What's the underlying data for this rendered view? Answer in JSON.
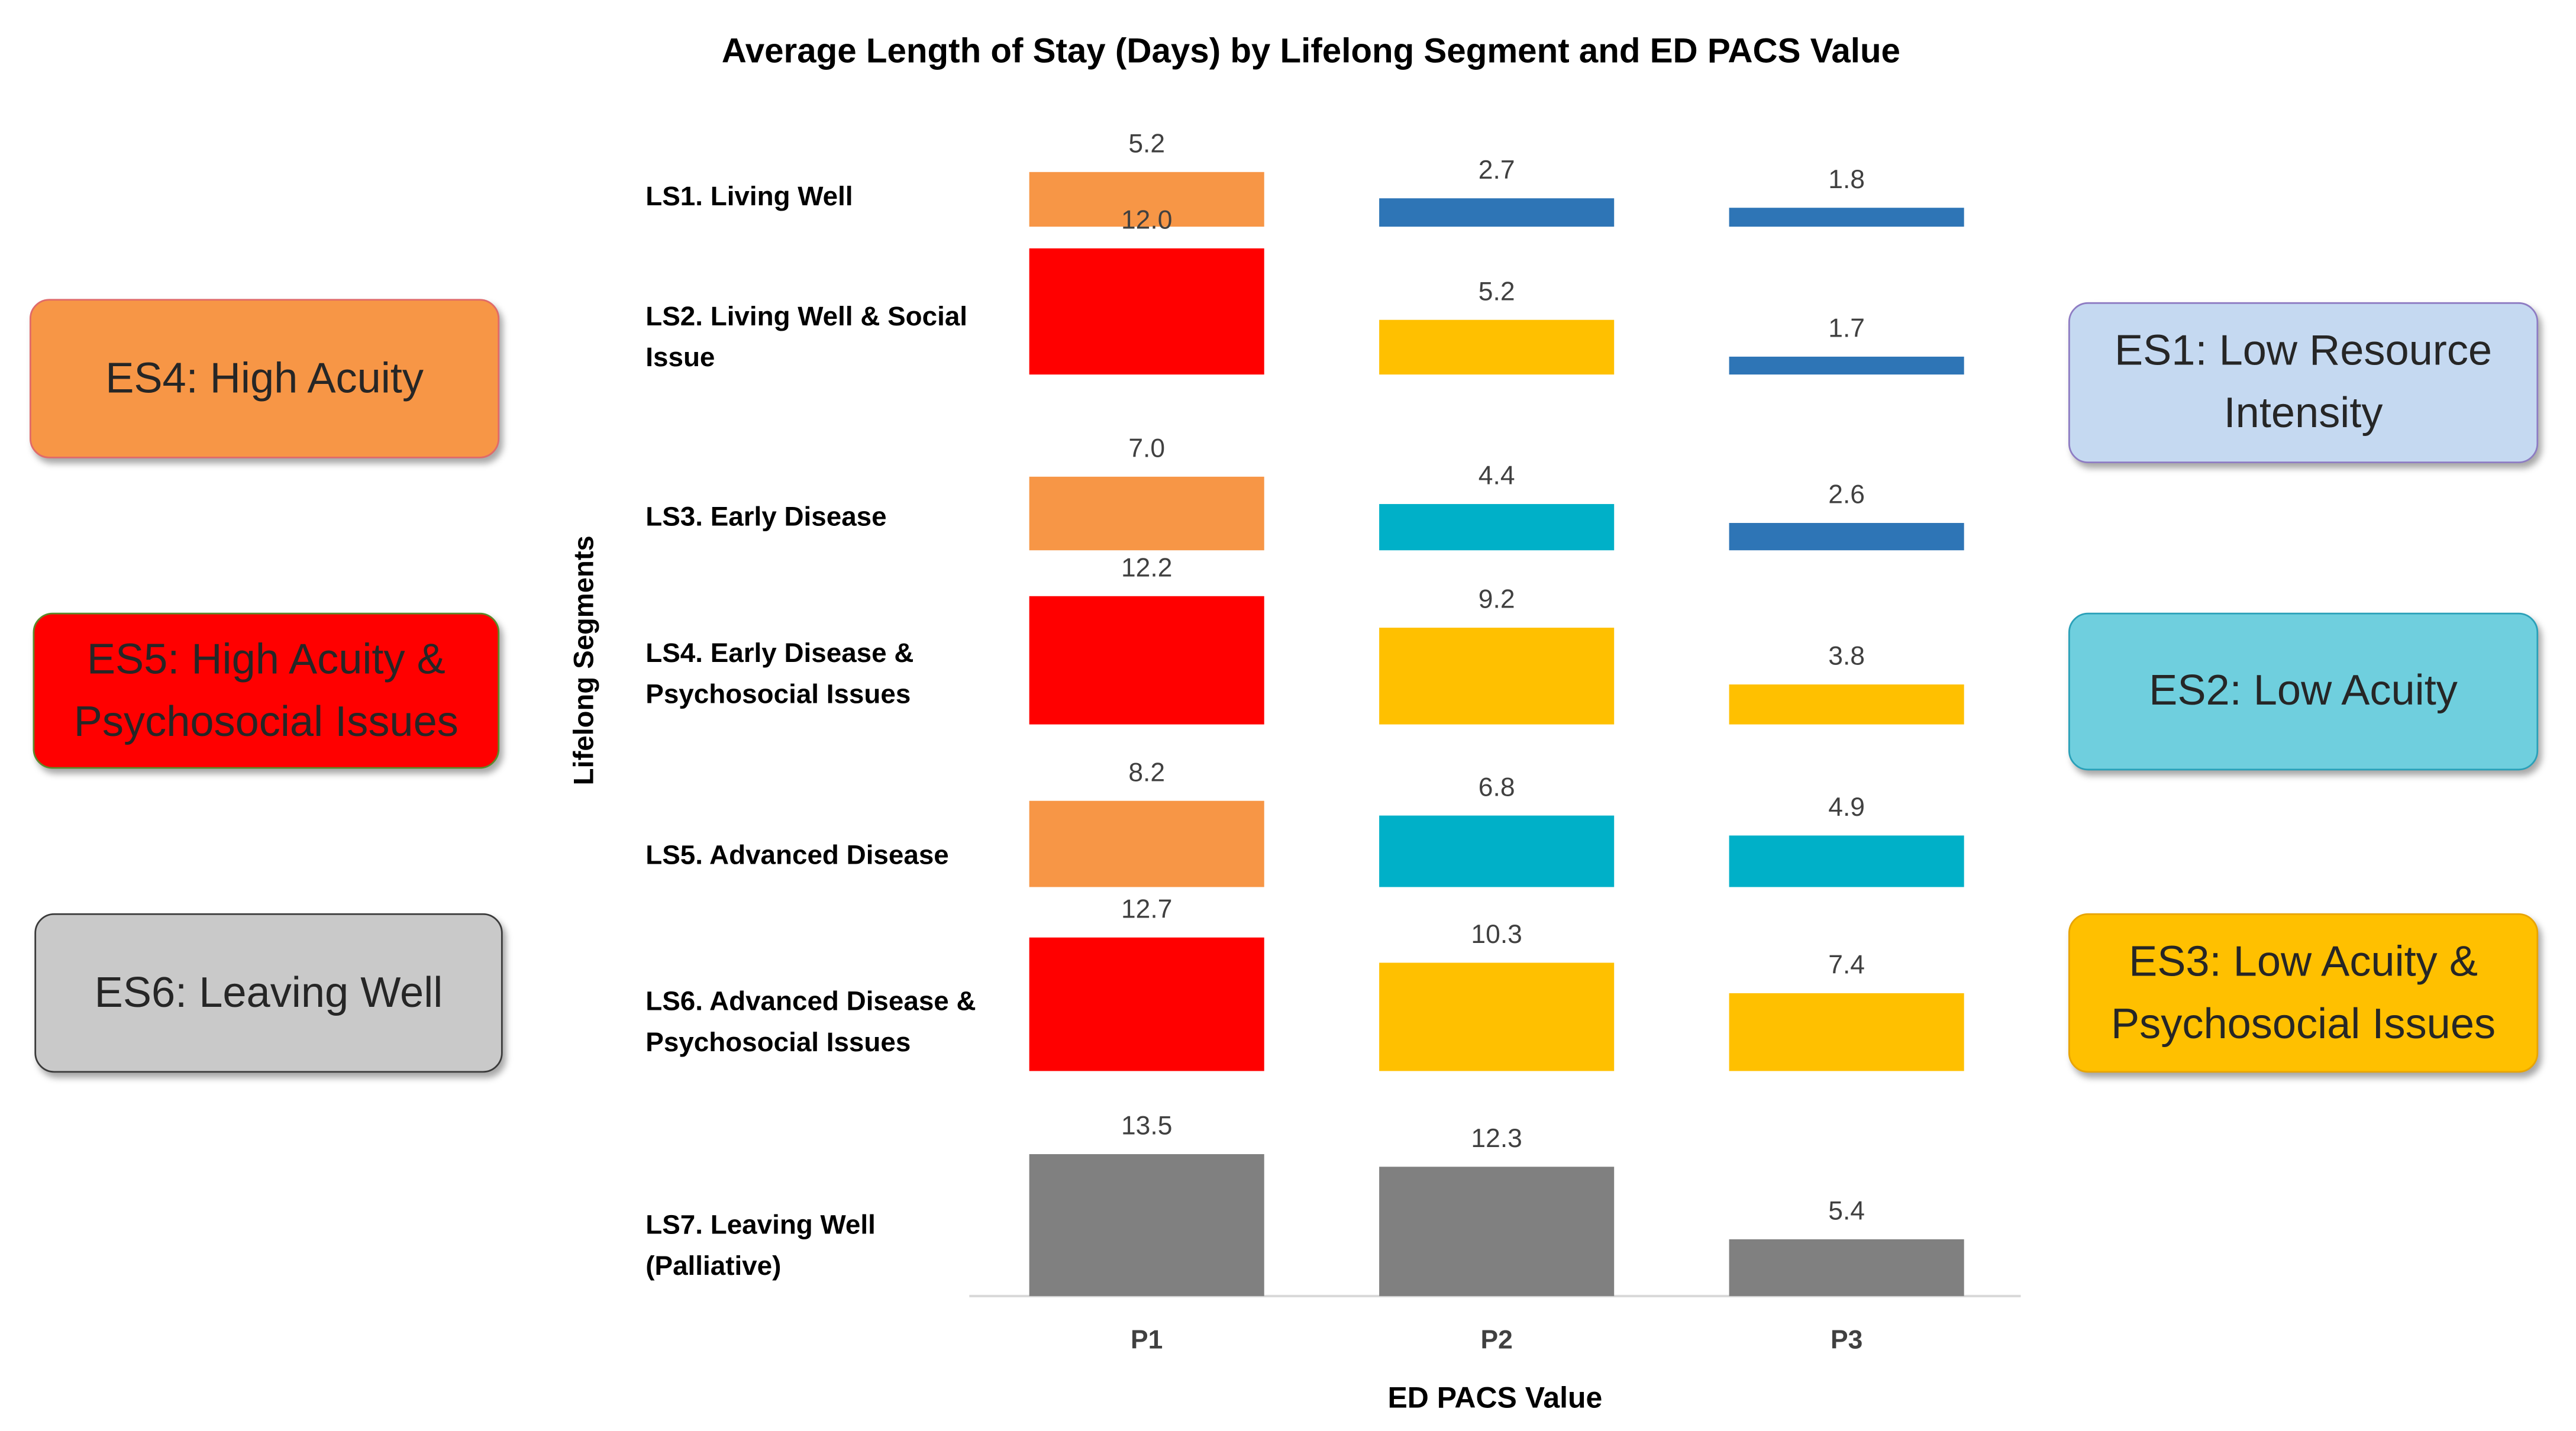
{
  "chart_data": {
    "type": "bar",
    "layout": "small-multiples",
    "title": "Average Length of Stay (Days) by Lifelong Segment and ED PACS Value",
    "xlabel": "ED PACS Value",
    "ylabel": "Lifelong Segments",
    "categories": [
      "P1",
      "P2",
      "P3"
    ],
    "rows": [
      {
        "label": [
          "LS1. Living Well"
        ],
        "values": [
          5.2,
          2.7,
          1.8
        ],
        "segments": [
          "ES4",
          "ES1",
          "ES1"
        ]
      },
      {
        "label": [
          "LS2. Living Well & Social",
          "Issue"
        ],
        "values": [
          12.0,
          5.2,
          1.7
        ],
        "segments": [
          "ES5",
          "ES3",
          "ES1"
        ]
      },
      {
        "label": [
          "LS3. Early Disease"
        ],
        "values": [
          7.0,
          4.4,
          2.6
        ],
        "segments": [
          "ES4",
          "ES2",
          "ES1"
        ]
      },
      {
        "label": [
          "LS4. Early Disease &",
          "Psychosocial Issues"
        ],
        "values": [
          12.2,
          9.2,
          3.8
        ],
        "segments": [
          "ES5",
          "ES3",
          "ES3"
        ]
      },
      {
        "label": [
          "LS5. Advanced Disease"
        ],
        "values": [
          8.2,
          6.8,
          4.9
        ],
        "segments": [
          "ES4",
          "ES2",
          "ES2"
        ]
      },
      {
        "label": [
          "LS6. Advanced Disease &",
          "Psychosocial Issues"
        ],
        "values": [
          12.7,
          10.3,
          7.4
        ],
        "segments": [
          "ES5",
          "ES3",
          "ES3"
        ]
      },
      {
        "label": [
          "LS7. Leaving Well",
          "(Palliative)"
        ],
        "values": [
          13.5,
          12.3,
          5.4
        ],
        "segments": [
          "ES6",
          "ES6",
          "ES6"
        ]
      }
    ],
    "value_format": "one decimal",
    "grid": false
  },
  "segments": {
    "ES1": {
      "lines": [
        "ES1: Low Resource",
        "Intensity"
      ],
      "color": "#2e75b6",
      "box_fill": "#c5d9f1",
      "box_border": "#8e7cc3",
      "placement": "right"
    },
    "ES2": {
      "lines": [
        "ES2: Low Acuity"
      ],
      "color": "#00b0c8",
      "box_fill": "#6fcfde",
      "box_border": "#2aa0b8",
      "placement": "right"
    },
    "ES3": {
      "lines": [
        "ES3: Low Acuity &",
        "Psychosocial Issues"
      ],
      "color": "#ffc000",
      "box_fill": "#ffc000",
      "box_border": "#e8a400",
      "placement": "right"
    },
    "ES4": {
      "lines": [
        "ES4: High Acuity"
      ],
      "color": "#f79646",
      "box_fill": "#f79646",
      "box_border": "#e06a6a",
      "placement": "left"
    },
    "ES5": {
      "lines": [
        "ES5: High Acuity &",
        "Psychosocial Issues"
      ],
      "color": "#ff0000",
      "box_fill": "#ff0000",
      "box_border": "#5a8a2a",
      "placement": "left"
    },
    "ES6": {
      "lines": [
        "ES6: Leaving Well"
      ],
      "color": "#808080",
      "box_fill": "#c9c9c9",
      "box_border": "#3a3a3a",
      "placement": "left"
    }
  },
  "legend_order": [
    "ES4",
    "ES5",
    "ES6",
    "ES1",
    "ES2",
    "ES3"
  ]
}
